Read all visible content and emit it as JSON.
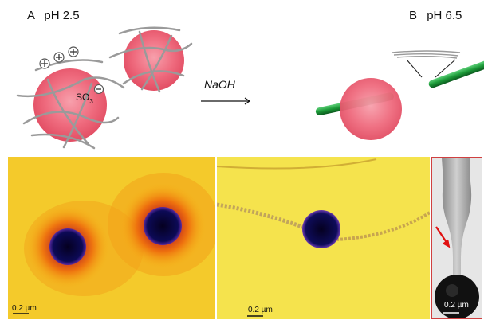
{
  "panel_a": {
    "letter": "A",
    "ph": "pH 2.5",
    "sulfonate": "SO",
    "sulfonate_sub": "3"
  },
  "reaction": {
    "reagent": "NaOH"
  },
  "panel_b": {
    "letter": "B",
    "ph": "pH 6.5"
  },
  "micrographs": [
    {
      "scale": "0.2 µm"
    },
    {
      "scale": "0.2 µm"
    },
    {
      "scale": "0.2 µm"
    }
  ],
  "colors": {
    "particle": "#f06a7e",
    "fiber": "#9a9a9a",
    "rod": "#1e9a3a",
    "arrow": "#e01010"
  }
}
